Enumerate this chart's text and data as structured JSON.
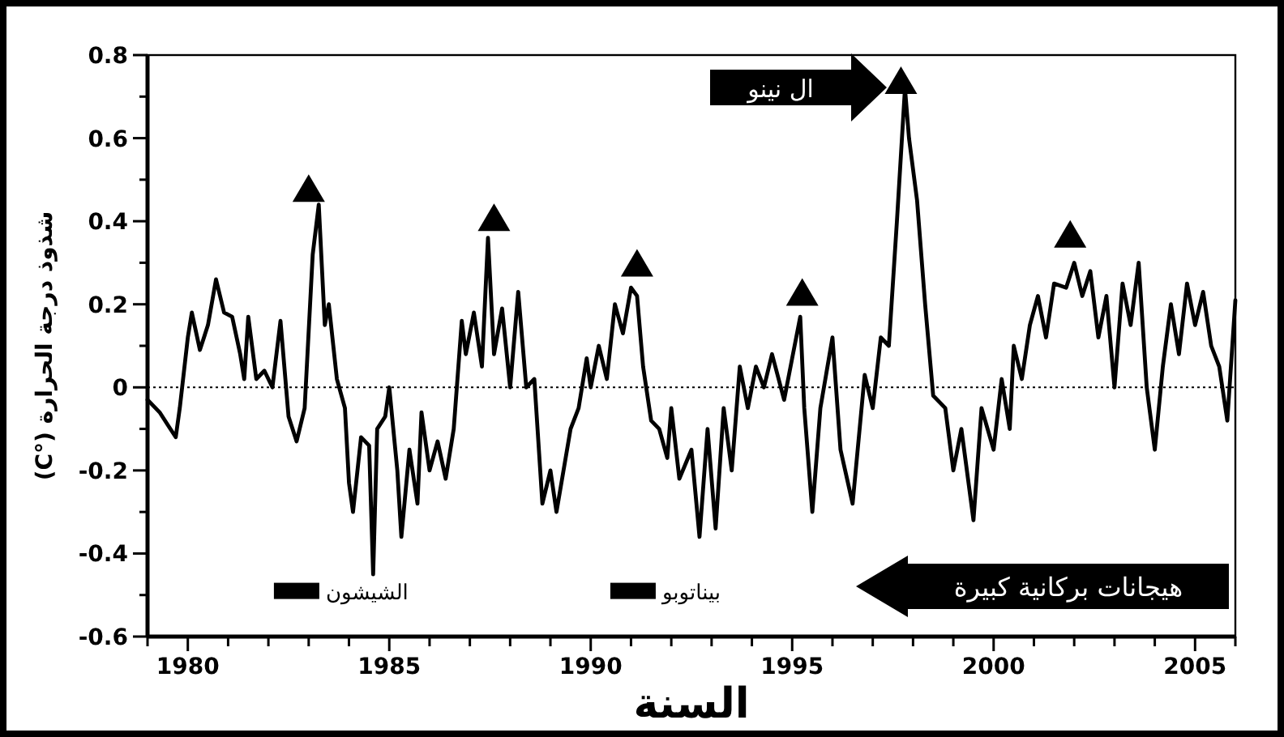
{
  "chart_data": {
    "type": "line",
    "xlabel": "السنة",
    "ylabel": "شذوذ درجة الحرارة (°C)",
    "xlim": [
      1979,
      2006
    ],
    "ylim": [
      -0.6,
      0.8
    ],
    "xticks": [
      {
        "value": 1979,
        "label": null
      },
      1980,
      {
        "value": 1981,
        "label": null
      },
      {
        "value": 1982,
        "label": null
      },
      {
        "value": 1983,
        "label": null
      },
      {
        "value": 1984,
        "label": null
      },
      1985,
      {
        "value": 1986,
        "label": null
      },
      {
        "value": 1987,
        "label": null
      },
      {
        "value": 1988,
        "label": null
      },
      {
        "value": 1989,
        "label": null
      },
      1990,
      {
        "value": 1991,
        "label": null
      },
      {
        "value": 1992,
        "label": null
      },
      {
        "value": 1993,
        "label": null
      },
      {
        "value": 1994,
        "label": null
      },
      1995,
      {
        "value": 1996,
        "label": null
      },
      {
        "value": 1997,
        "label": null
      },
      {
        "value": 1998,
        "label": null
      },
      {
        "value": 1999,
        "label": null
      },
      2000,
      {
        "value": 2001,
        "label": null
      },
      {
        "value": 2002,
        "label": null
      },
      {
        "value": 2003,
        "label": null
      },
      {
        "value": 2004,
        "label": null
      },
      2005,
      {
        "value": 2006,
        "label": null
      }
    ],
    "yticks": [
      -0.6,
      {
        "value": -0.5,
        "label": null
      },
      -0.4,
      {
        "value": -0.3,
        "label": null
      },
      -0.2,
      {
        "value": -0.1,
        "label": null
      },
      0,
      {
        "value": 0.1,
        "label": null
      },
      0.2,
      {
        "value": 0.3,
        "label": null
      },
      0.4,
      {
        "value": 0.5,
        "label": null
      },
      0.6,
      {
        "value": 0.7,
        "label": null
      },
      0.8
    ],
    "grid": false,
    "series": [
      {
        "color": "#000000",
        "marker": "none",
        "line_style": "solid",
        "x": [
          1979.0,
          1979.3,
          1979.5,
          1979.7,
          1979.8,
          1980.0,
          1980.1,
          1980.3,
          1980.5,
          1980.7,
          1980.9,
          1981.1,
          1981.3,
          1981.4,
          1981.5,
          1981.7,
          1981.9,
          1982.1,
          1982.3,
          1982.5,
          1982.7,
          1982.9,
          1983.1,
          1983.25,
          1983.4,
          1983.5,
          1983.7,
          1983.9,
          1984.0,
          1984.1,
          1984.3,
          1984.5,
          1984.6,
          1984.7,
          1984.9,
          1985.0,
          1985.2,
          1985.3,
          1985.5,
          1985.7,
          1985.8,
          1986.0,
          1986.2,
          1986.4,
          1986.6,
          1986.8,
          1986.9,
          1987.1,
          1987.3,
          1987.45,
          1987.6,
          1987.8,
          1988.0,
          1988.2,
          1988.4,
          1988.6,
          1988.8,
          1989.0,
          1989.15,
          1989.5,
          1989.7,
          1989.9,
          1990.0,
          1990.2,
          1990.4,
          1990.6,
          1990.8,
          1991.0,
          1991.15,
          1991.3,
          1991.5,
          1991.7,
          1991.9,
          1992.0,
          1992.2,
          1992.5,
          1992.7,
          1992.9,
          1993.1,
          1993.3,
          1993.5,
          1993.7,
          1993.9,
          1994.1,
          1994.3,
          1994.5,
          1994.8,
          1995.0,
          1995.2,
          1995.3,
          1995.5,
          1995.7,
          1996.0,
          1996.2,
          1996.5,
          1996.8,
          1997.0,
          1997.2,
          1997.4,
          1997.6,
          1997.8,
          1997.9,
          1998.1,
          1998.3,
          1998.5,
          1998.8,
          1999.0,
          1999.2,
          1999.5,
          1999.7,
          2000.0,
          2000.2,
          2000.4,
          2000.5,
          2000.7,
          2000.9,
          2001.1,
          2001.3,
          2001.5,
          2001.8,
          2002.0,
          2002.2,
          2002.4,
          2002.6,
          2002.8,
          2003.0,
          2003.2,
          2003.4,
          2003.6,
          2003.8,
          2004.0,
          2004.2,
          2004.4,
          2004.6,
          2004.8,
          2005.0,
          2005.2,
          2005.4,
          2005.6,
          2005.8,
          2006.0
        ],
        "values": [
          -0.03,
          -0.06,
          -0.09,
          -0.12,
          -0.05,
          0.12,
          0.18,
          0.09,
          0.15,
          0.26,
          0.18,
          0.17,
          0.08,
          0.02,
          0.17,
          0.02,
          0.04,
          0.0,
          0.16,
          -0.07,
          -0.13,
          -0.05,
          0.32,
          0.44,
          0.15,
          0.2,
          0.02,
          -0.05,
          -0.23,
          -0.3,
          -0.12,
          -0.14,
          -0.45,
          -0.1,
          -0.07,
          0.0,
          -0.2,
          -0.36,
          -0.15,
          -0.28,
          -0.06,
          -0.2,
          -0.13,
          -0.22,
          -0.1,
          0.16,
          0.08,
          0.18,
          0.05,
          0.36,
          0.08,
          0.19,
          0.0,
          0.23,
          0.0,
          0.02,
          -0.28,
          -0.2,
          -0.3,
          -0.1,
          -0.05,
          0.07,
          0.0,
          0.1,
          0.02,
          0.2,
          0.13,
          0.24,
          0.22,
          0.05,
          -0.08,
          -0.1,
          -0.17,
          -0.05,
          -0.22,
          -0.15,
          -0.36,
          -0.1,
          -0.34,
          -0.05,
          -0.2,
          0.05,
          -0.05,
          0.05,
          0.0,
          0.08,
          -0.03,
          0.07,
          0.17,
          -0.05,
          -0.3,
          -0.05,
          0.12,
          -0.15,
          -0.28,
          0.03,
          -0.05,
          0.12,
          0.1,
          0.4,
          0.72,
          0.6,
          0.45,
          0.2,
          -0.02,
          -0.05,
          -0.2,
          -0.1,
          -0.32,
          -0.05,
          -0.15,
          0.02,
          -0.1,
          0.1,
          0.02,
          0.15,
          0.22,
          0.12,
          0.25,
          0.24,
          0.3,
          0.22,
          0.28,
          0.12,
          0.22,
          0.0,
          0.25,
          0.15,
          0.3,
          0.0,
          -0.15,
          0.05,
          0.2,
          0.08,
          0.25,
          0.15,
          0.23,
          0.1,
          0.05,
          -0.08,
          0.21
        ]
      },
      {
        "type": "scatter",
        "color": "#000000",
        "marker": "triangle",
        "x": [
          1983.0,
          1987.6,
          1991.15,
          1995.25,
          1997.7,
          2001.9
        ],
        "values": [
          0.47,
          0.4,
          0.29,
          0.22,
          0.73,
          0.36
        ]
      }
    ],
    "ref_lines": [
      {
        "axis": "y",
        "value": 0,
        "color": "#000000",
        "line_style": "dotted"
      }
    ],
    "annotations": [
      "ال نينو",
      "هيجانات بركانية كبيرة",
      {
        "text": "الشيشون",
        "x": 1982.7,
        "y": -0.49
      },
      {
        "text": "بيناتوبو",
        "x": 1991.05,
        "y": -0.49
      }
    ]
  }
}
